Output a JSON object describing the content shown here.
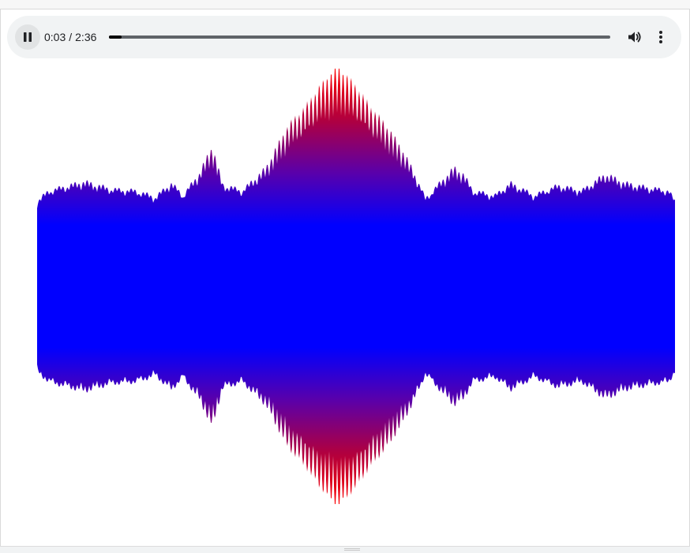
{
  "player": {
    "current_time": "0:03",
    "separator": "/",
    "duration": "2:36",
    "progress_fraction": 0.025,
    "play_state": "playing",
    "play_pause_icon": "pause-icon",
    "volume_icon": "volume-icon",
    "more_icon": "more-vert-icon"
  },
  "colors": {
    "player_bg": "#f1f3f4",
    "wave_center": "#0000ff",
    "wave_peak": "#ff0000"
  }
}
